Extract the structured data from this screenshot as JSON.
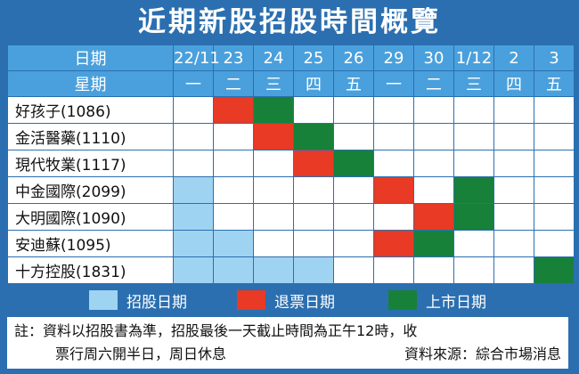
{
  "title": "近期新股招股時間概覽",
  "header": {
    "date_label": "日期",
    "weekday_label": "星期",
    "dates": [
      "22/11",
      "23",
      "24",
      "25",
      "26",
      "29",
      "30",
      "1/12",
      "2",
      "3"
    ],
    "weekdays": [
      "一",
      "二",
      "三",
      "四",
      "五",
      "一",
      "二",
      "三",
      "四",
      "五"
    ]
  },
  "rows": [
    {
      "name": "好孩子(1086)",
      "cells": [
        "",
        "r",
        "g",
        "",
        "",
        "",
        "",
        "",
        "",
        ""
      ]
    },
    {
      "name": "金活醫藥(1110)",
      "cells": [
        "",
        "",
        "r",
        "g",
        "",
        "",
        "",
        "",
        "",
        ""
      ]
    },
    {
      "name": "現代牧業(1117)",
      "cells": [
        "",
        "",
        "",
        "r",
        "g",
        "",
        "",
        "",
        "",
        ""
      ]
    },
    {
      "name": "中金國際(2099)",
      "cells": [
        "b",
        "",
        "",
        "",
        "",
        "r",
        "",
        "g",
        "",
        ""
      ]
    },
    {
      "name": "大明國際(1090)",
      "cells": [
        "b",
        "",
        "",
        "",
        "",
        "",
        "r",
        "g",
        "",
        ""
      ]
    },
    {
      "name": "安迪蘇(1095)",
      "cells": [
        "b",
        "b",
        "",
        "",
        "",
        "r",
        "g",
        "",
        "",
        ""
      ]
    },
    {
      "name": "十方控股(1831)",
      "cells": [
        "b",
        "b",
        "b",
        "b",
        "",
        "",
        "",
        "",
        "",
        "g"
      ]
    }
  ],
  "legend": [
    {
      "code": "b",
      "label": "招股日期",
      "color": "#9fd3f2"
    },
    {
      "code": "r",
      "label": "退票日期",
      "color": "#e83a24"
    },
    {
      "code": "g",
      "label": "上市日期",
      "color": "#17813a"
    }
  ],
  "note": {
    "line1": "註：資料以招股書為準，招股最後一天截止時間為正午12時，收",
    "line2": "票行周六開半日，周日休息",
    "source": "資料來源：綜合市場消息"
  }
}
